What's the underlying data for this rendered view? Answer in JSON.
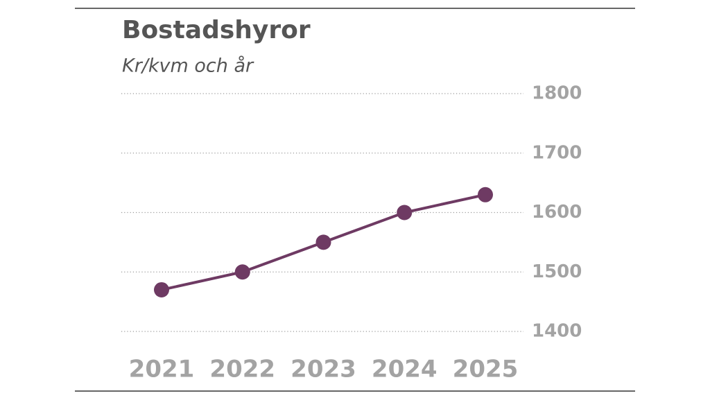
{
  "chart_data": {
    "type": "line",
    "title": "Bostadshyror",
    "subtitle": "Kr/kvm och år",
    "categories": [
      "2021",
      "2022",
      "2023",
      "2024",
      "2025"
    ],
    "values": [
      1470,
      1500,
      1550,
      1600,
      1630
    ],
    "color": "#6e3a63",
    "ylim": [
      1400,
      1800
    ],
    "yticks": [
      1400,
      1500,
      1600,
      1700,
      1800
    ],
    "grid": true
  }
}
